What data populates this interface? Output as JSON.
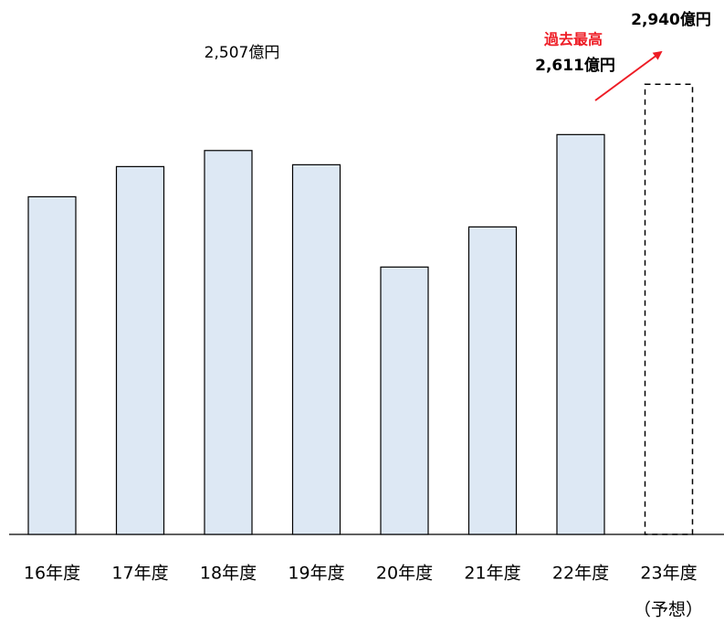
{
  "chart_data": {
    "type": "bar",
    "categories": [
      "16年度",
      "17年度",
      "18年度",
      "19年度",
      "20年度",
      "21年度",
      "22年度",
      "23年度"
    ],
    "values": [
      2205,
      2402,
      2507,
      2414,
      1746,
      2008,
      2611,
      2940
    ],
    "value_labels": [
      null,
      null,
      "2,507億円",
      null,
      null,
      null,
      "2,611億円",
      "2,940億円"
    ],
    "outline_styles": [
      "solid",
      "solid",
      "solid",
      "solid",
      "solid",
      "solid",
      "solid",
      "dashed"
    ],
    "color": "#dde8f4",
    "annotation": "過去最高",
    "annotation_color": "#ee1c25",
    "category_note": "（予想）",
    "ylim": [
      0,
      3490
    ]
  }
}
